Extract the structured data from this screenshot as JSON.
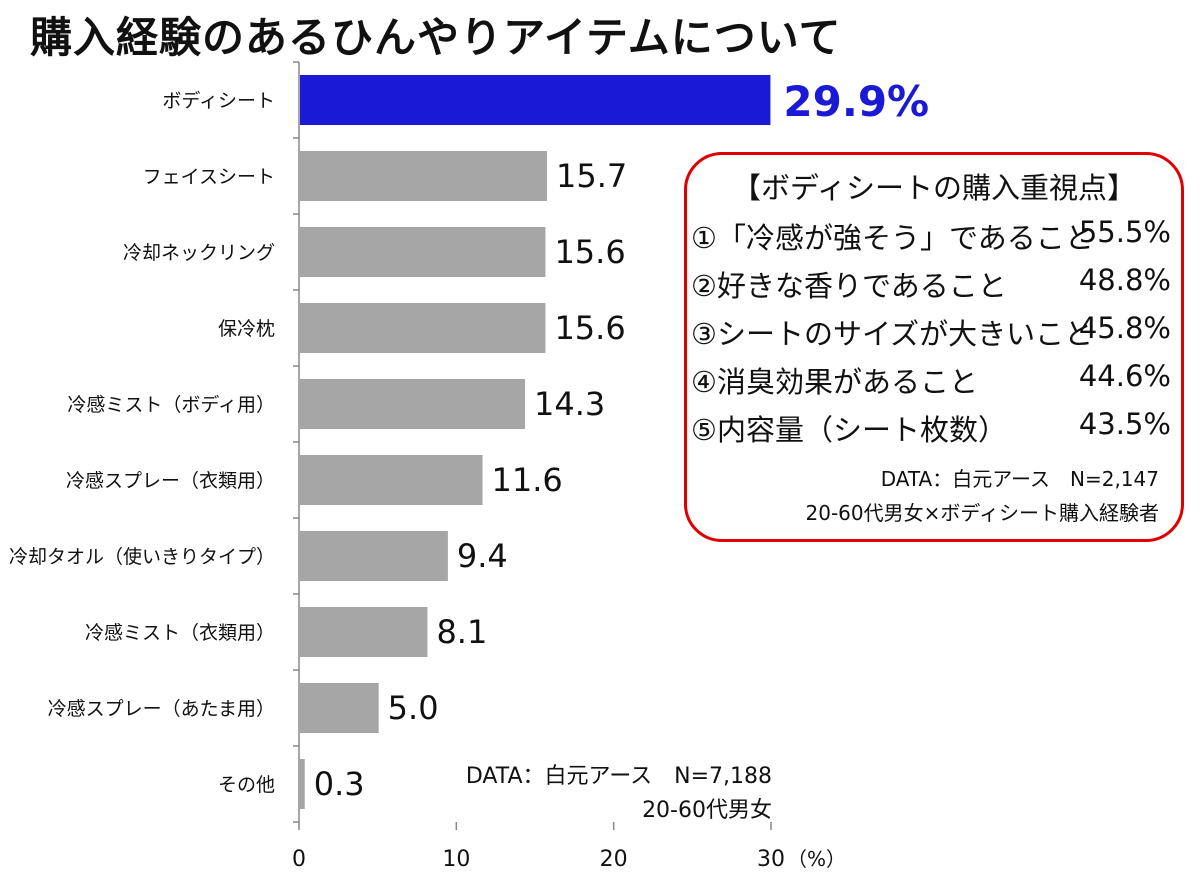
{
  "title": "購入経験のあるひんやりアイテムについて",
  "chart_data": {
    "type": "bar",
    "orientation": "horizontal",
    "title": "購入経験のあるひんやりアイテムについて",
    "categories": [
      "ボディシート",
      "フェイスシート",
      "冷却ネックリング",
      "保冷枕",
      "冷感ミスト（ボディ用）",
      "冷感スプレー（衣類用）",
      "冷却タオル（使いきりタイプ）",
      "冷感ミスト（衣類用）",
      "冷感スプレー（あたま用）",
      "その他"
    ],
    "values": [
      29.9,
      15.7,
      15.6,
      15.6,
      14.3,
      11.6,
      9.4,
      8.1,
      5.0,
      0.3
    ],
    "value_labels": [
      "29.9%",
      "15.7",
      "15.6",
      "15.6",
      "14.3",
      "11.6",
      "9.4",
      "8.1",
      "5.0",
      "0.3"
    ],
    "xlim": [
      0,
      30
    ],
    "xticks": [
      0,
      10,
      20,
      30
    ],
    "tick_labels": [
      "0",
      "10",
      "20",
      "30"
    ],
    "unit_label": "（%）",
    "colors": {
      "highlight": "#1a1ad6",
      "bar": "#a6a6a6",
      "highlight_label": "#1a1ad6"
    },
    "notes": [
      "DATA：白元アース　N=7,188",
      "20-60代男女"
    ]
  },
  "callout": {
    "title": "【ボディシートの購入重視点】",
    "items": [
      {
        "label": "①「冷感が強そう」であること",
        "value": "55.5%"
      },
      {
        "label": "②好きな香りであること",
        "value": "48.8%"
      },
      {
        "label": "③シートのサイズが大きいこと",
        "value": "45.8%"
      },
      {
        "label": "④消臭効果があること",
        "value": "44.6%"
      },
      {
        "label": "⑤内容量（シート枚数）",
        "value": "43.5%"
      }
    ],
    "notes": [
      "DATA：白元アース　N=2,147",
      "20-60代男女×ボディシート購入経験者"
    ],
    "border_color": "#e00000"
  }
}
